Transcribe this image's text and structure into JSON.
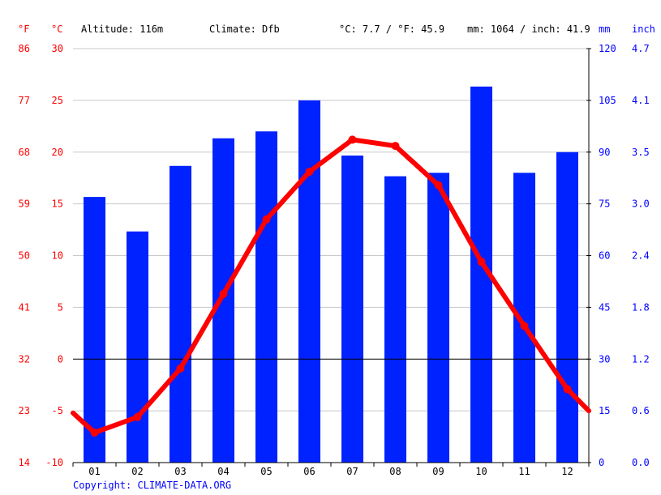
{
  "header": {
    "unit_f": "°F",
    "unit_c": "°C",
    "altitude": "Altitude: 116m",
    "climate": "Climate: Dfb",
    "temp_avg": "°C: 7.7 / °F: 45.9",
    "precip_total": "mm: 1064 / inch: 41.9",
    "unit_mm": "mm",
    "unit_inch": "inch"
  },
  "copyright": "Copyright: CLIMATE-DATA.ORG",
  "colors": {
    "temp": "#ff0000",
    "precip": "#0022ff",
    "grid": "#c8c8c8",
    "zero_line": "#000000"
  },
  "chart_data": {
    "type": "bar",
    "categories": [
      "01",
      "02",
      "03",
      "04",
      "05",
      "06",
      "07",
      "08",
      "09",
      "10",
      "11",
      "12"
    ],
    "series": [
      {
        "type": "bar",
        "axis": "mm",
        "values": [
          77,
          67,
          86,
          94,
          96,
          105,
          89,
          83,
          84,
          109,
          84,
          90
        ]
      },
      {
        "type": "line",
        "axis": "°C",
        "values": [
          -7.1,
          -5.6,
          -0.9,
          6.3,
          13.5,
          18.1,
          21.2,
          20.6,
          16.8,
          9.4,
          3.2,
          -2.9
        ]
      }
    ],
    "temp_edges": {
      "start": -5.2,
      "end": -5.0
    },
    "y_left_c": {
      "ylim": [
        -10,
        30
      ],
      "ticks": [
        "-10",
        "-5",
        "0",
        "5",
        "10",
        "15",
        "20",
        "25",
        "30"
      ]
    },
    "y_left_f": {
      "ticks": [
        "14",
        "23",
        "32",
        "41",
        "50",
        "59",
        "68",
        "77",
        "86"
      ]
    },
    "y_right_mm": {
      "ylim": [
        0,
        120
      ],
      "ticks": [
        "0",
        "15",
        "30",
        "45",
        "60",
        "75",
        "90",
        "105",
        "120"
      ]
    },
    "y_right_inch": {
      "ticks": [
        "0.0",
        "0.6",
        "1.2",
        "1.8",
        "2.4",
        "3.0",
        "3.5",
        "4.1",
        "4.7"
      ]
    },
    "grid": true
  }
}
